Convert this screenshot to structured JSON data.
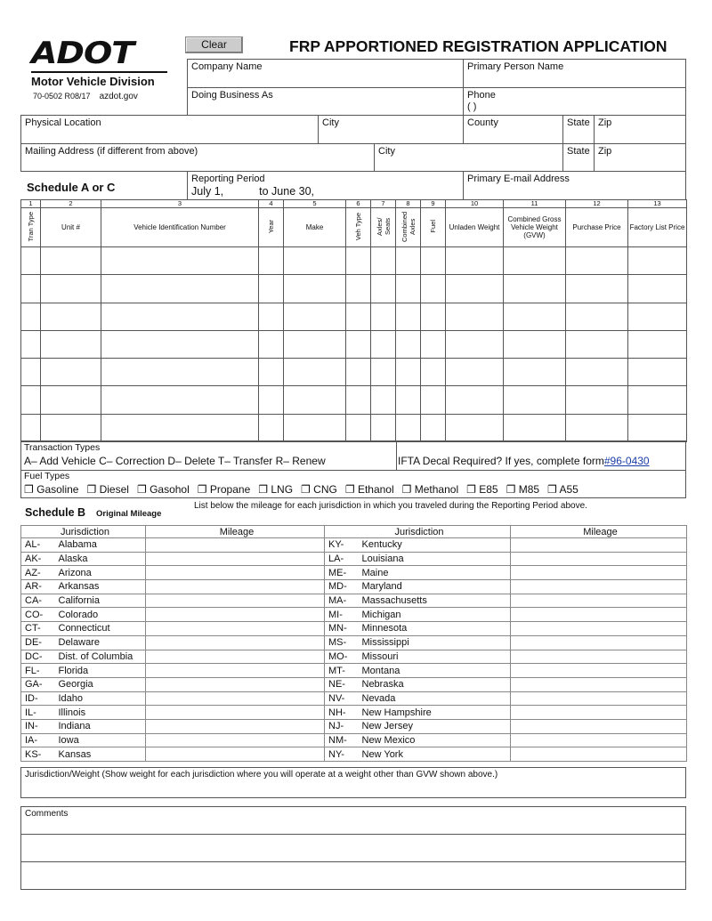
{
  "header": {
    "logo_text": "ADOT",
    "division": "Motor Vehicle Division",
    "form_code": "70-0502 R08/17",
    "website": "azdot.gov",
    "clear_label": "Clear",
    "title": "FRP APPORTIONED REGISTRATION APPLICATION"
  },
  "fields": {
    "company_name": "Company Name",
    "primary_person": "Primary Person Name",
    "dba": "Doing Business As",
    "phone": "Phone",
    "phone_value": "(          )",
    "physical_location": "Physical Location",
    "city": "City",
    "county": "County",
    "state": "State",
    "zip": "Zip",
    "mailing": "Mailing Address (if different from above)",
    "reporting_period": "Reporting Period",
    "period_start": "July 1,",
    "period_end": "to June 30,",
    "email": "Primary E-mail Address"
  },
  "schedule_a": {
    "label": "Schedule A or C",
    "column_numbers": [
      "1",
      "2",
      "3",
      "4",
      "5",
      "6",
      "7",
      "8",
      "9",
      "10",
      "11",
      "12",
      "13"
    ],
    "columns": [
      "Tran Type",
      "Unit #",
      "Vehicle Identification Number",
      "Year",
      "Make",
      "Veh Type",
      "Axles/ Seats",
      "Combined Axles",
      "Fuel",
      "Unladen Weight",
      "Combined Gross Vehicle Weight (GVW)",
      "Purchase Price",
      "Factory List Price"
    ],
    "row_count": 7
  },
  "transaction": {
    "label": "Transaction Types",
    "types": "A– Add Vehicle   C– Correction   D– Delete   T– Transfer   R– Renew",
    "ifta": "IFTA Decal Required? If yes, complete form",
    "ifta_link": "#96-0430"
  },
  "fuel": {
    "label": "Fuel Types",
    "checkbox_icon": "❐",
    "types": [
      "Gasoline",
      "Diesel",
      "Gasohol",
      "Propane",
      "LNG",
      "CNG",
      "Ethanol",
      "Methanol",
      "E85",
      "M85",
      "A55"
    ]
  },
  "schedule_b": {
    "label": "Schedule B",
    "sublabel": "Original Mileage",
    "instructions": "List below the mileage for each jurisdiction in which you traveled during the Reporting Period above.",
    "headers": [
      "Jurisdiction",
      "Mileage",
      "Jurisdiction",
      "Mileage"
    ],
    "left": [
      [
        "AL-",
        "Alabama"
      ],
      [
        "AK-",
        "Alaska"
      ],
      [
        "AZ-",
        "Arizona"
      ],
      [
        "AR-",
        "Arkansas"
      ],
      [
        "CA-",
        "California"
      ],
      [
        "CO-",
        "Colorado"
      ],
      [
        "CT-",
        "Connecticut"
      ],
      [
        "DE-",
        "Delaware"
      ],
      [
        "DC-",
        "Dist. of Columbia"
      ],
      [
        "FL-",
        "Florida"
      ],
      [
        "GA-",
        "Georgia"
      ],
      [
        "ID-",
        "Idaho"
      ],
      [
        "IL-",
        "Illinois"
      ],
      [
        "IN-",
        "Indiana"
      ],
      [
        "IA-",
        "Iowa"
      ],
      [
        "KS-",
        "Kansas"
      ]
    ],
    "right": [
      [
        "KY-",
        "Kentucky"
      ],
      [
        "LA-",
        "Louisiana"
      ],
      [
        "ME-",
        "Maine"
      ],
      [
        "MD-",
        "Maryland"
      ],
      [
        "MA-",
        "Massachusetts"
      ],
      [
        "MI-",
        "Michigan"
      ],
      [
        "MN-",
        "Minnesota"
      ],
      [
        "MS-",
        "Mississippi"
      ],
      [
        "MO-",
        "Missouri"
      ],
      [
        "MT-",
        "Montana"
      ],
      [
        "NE-",
        "Nebraska"
      ],
      [
        "NV-",
        "Nevada"
      ],
      [
        "NH-",
        "New Hampshire"
      ],
      [
        "NJ-",
        "New Jersey"
      ],
      [
        "NM-",
        "New Mexico"
      ],
      [
        "NY-",
        "New York"
      ]
    ]
  },
  "jur_weight": "Jurisdiction/Weight (Show weight for each jurisdiction where you will operate at a weight other than GVW shown above.)",
  "comments": "Comments"
}
